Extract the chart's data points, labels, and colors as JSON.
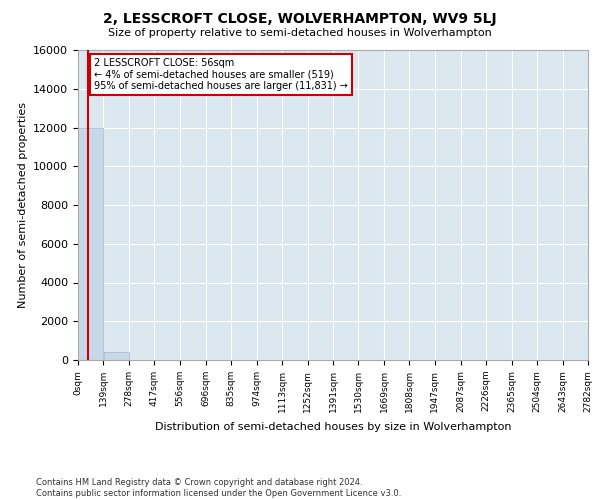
{
  "title_line1": "2, LESSCROFT CLOSE, WOLVERHAMPTON, WV9 5LJ",
  "title_line2": "Size of property relative to semi-detached houses in Wolverhampton",
  "xlabel": "Distribution of semi-detached houses by size in Wolverhampton",
  "ylabel": "Number of semi-detached properties",
  "footnote": "Contains HM Land Registry data © Crown copyright and database right 2024.\nContains public sector information licensed under the Open Government Licence v3.0.",
  "annotation_title": "2 LESSCROFT CLOSE: 56sqm",
  "annotation_line1": "← 4% of semi-detached houses are smaller (519)",
  "annotation_line2": "95% of semi-detached houses are larger (11,831) →",
  "property_size": 56,
  "bar_color": "#c8d8e8",
  "bar_edge_color": "#a0b8cc",
  "marker_color": "#cc0000",
  "annotation_box_color": "#cc0000",
  "background_color": "#dce8f0",
  "ylim": [
    0,
    16000
  ],
  "bin_edges": [
    0,
    139,
    278,
    417,
    556,
    696,
    835,
    974,
    1113,
    1252,
    1391,
    1530,
    1669,
    1808,
    1947,
    2087,
    2226,
    2365,
    2504,
    2643,
    2782
  ],
  "bin_labels": [
    "0sqm",
    "139sqm",
    "278sqm",
    "417sqm",
    "556sqm",
    "696sqm",
    "835sqm",
    "974sqm",
    "1113sqm",
    "1252sqm",
    "1391sqm",
    "1530sqm",
    "1669sqm",
    "1808sqm",
    "1947sqm",
    "2087sqm",
    "2226sqm",
    "2365sqm",
    "2504sqm",
    "2643sqm",
    "2782sqm"
  ],
  "bar_heights": [
    12000,
    400,
    0,
    0,
    0,
    0,
    0,
    0,
    0,
    0,
    0,
    0,
    0,
    0,
    0,
    0,
    0,
    0,
    0,
    0
  ],
  "yticks": [
    0,
    2000,
    4000,
    6000,
    8000,
    10000,
    12000,
    14000,
    16000
  ]
}
